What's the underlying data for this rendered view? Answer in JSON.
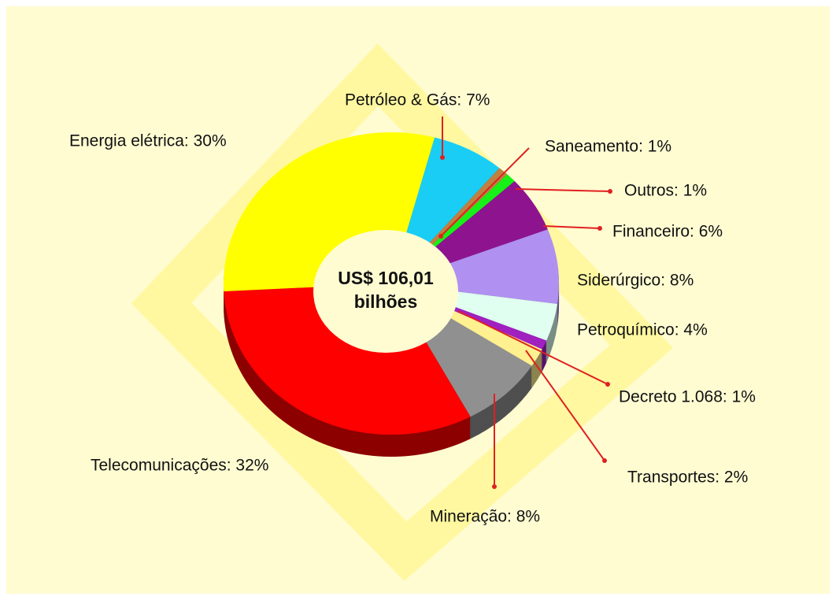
{
  "chart_data": {
    "type": "pie",
    "labels": [
      "Petróleo & Gás: 7%",
      "Saneamento: 1%",
      "Outros: 1%",
      "Financeiro: 6%",
      "Siderúrgico: 8%",
      "Petroquímico: 4%",
      "Decreto 1.068: 1%",
      "Transportes: 2%",
      "Mineração: 8%",
      "Telecomunicações: 32%",
      "Energia elétrica: 30%"
    ],
    "values": [
      7,
      1,
      1,
      6,
      8,
      4,
      1,
      2,
      8,
      32,
      30
    ],
    "colors": [
      "#19cdf5",
      "#c08040",
      "#16f016",
      "#8e138e",
      "#b090f0",
      "#e0fff0",
      "#a020c0",
      "#fff090",
      "#909090",
      "#ff0000",
      "#ffff00"
    ],
    "center_label": [
      "US$ 106,01",
      "bilhões"
    ]
  }
}
